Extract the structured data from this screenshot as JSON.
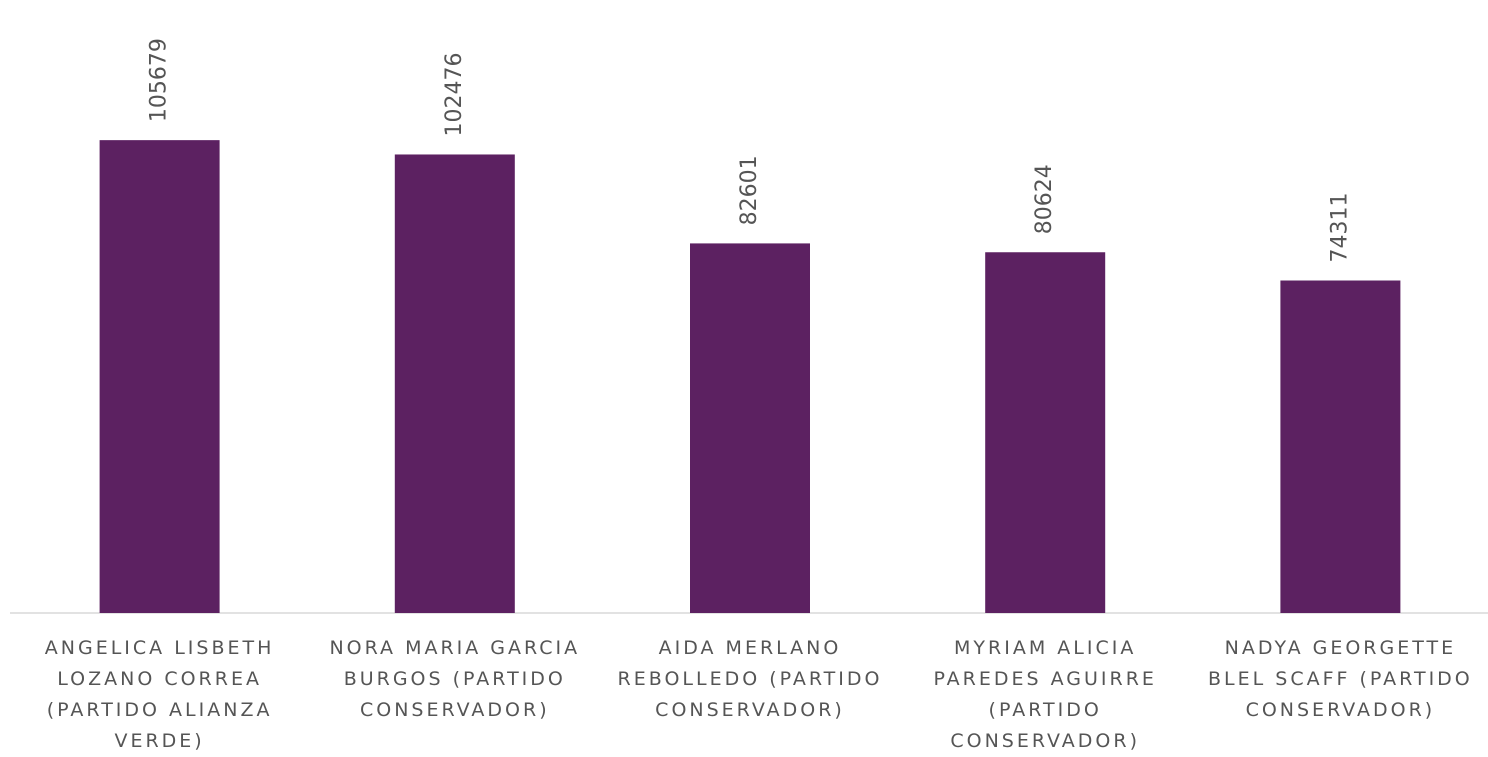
{
  "chart_data": {
    "type": "bar",
    "categories": [
      "ANGELICA LISBETH LOZANO CORREA (PARTIDO ALIANZA VERDE)",
      "NORA MARIA GARCIA BURGOS (PARTIDO CONSERVADOR)",
      "AIDA MERLANO REBOLLEDO (PARTIDO CONSERVADOR)",
      "MYRIAM ALICIA PAREDES AGUIRRE (PARTIDO CONSERVADOR)",
      "NADYA GEORGETTE BLEL SCAFF (PARTIDO CONSERVADOR)"
    ],
    "values": [
      105679,
      102476,
      82601,
      80624,
      74311
    ],
    "color": "#5c2161",
    "ylim": [
      0,
      137000
    ],
    "grid": false
  }
}
